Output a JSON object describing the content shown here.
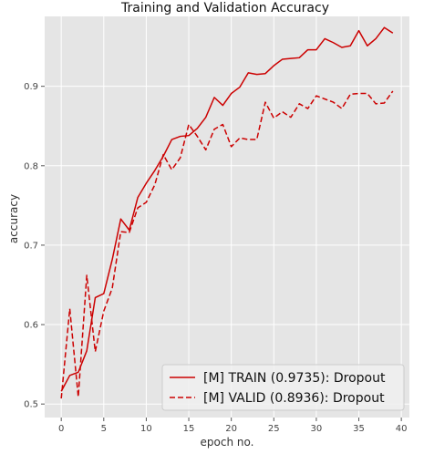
{
  "chart_data": {
    "type": "line",
    "title": "Training and Validation Accuracy",
    "xlabel": "epoch no.",
    "ylabel": "accuracy",
    "xlim": [
      -1.95,
      40.95
    ],
    "ylim": [
      0.483,
      0.988
    ],
    "xticks": [
      0,
      5,
      10,
      15,
      20,
      25,
      30,
      35,
      40
    ],
    "xtick_labels": [
      "0",
      "5",
      "10",
      "15",
      "20",
      "25",
      "30",
      "35",
      "40"
    ],
    "yticks": [
      0.5,
      0.6,
      0.7,
      0.8,
      0.9
    ],
    "ytick_labels": [
      "0.5",
      "0.6",
      "0.7",
      "0.8",
      "0.9"
    ],
    "grid": true,
    "style": "ggplot",
    "background_color": "#E5E5E5",
    "grid_color": "#FFFFFF",
    "legend_position": "lower-right",
    "x": [
      0,
      1,
      2,
      3,
      4,
      5,
      6,
      7,
      8,
      9,
      10,
      11,
      12,
      13,
      14,
      15,
      16,
      17,
      18,
      19,
      20,
      21,
      22,
      23,
      24,
      25,
      26,
      27,
      28,
      29,
      30,
      31,
      32,
      33,
      34,
      35,
      36,
      37,
      38,
      39
    ],
    "series": [
      {
        "name": "[M] TRAIN (0.9735): Dropout",
        "color": "#CC0000",
        "dash": "solid",
        "values": [
          0.516,
          0.536,
          0.54,
          0.567,
          0.634,
          0.639,
          0.682,
          0.733,
          0.719,
          0.76,
          0.778,
          0.794,
          0.812,
          0.833,
          0.837,
          0.838,
          0.847,
          0.861,
          0.886,
          0.876,
          0.891,
          0.899,
          0.917,
          0.915,
          0.916,
          0.926,
          0.934,
          0.935,
          0.936,
          0.946,
          0.946,
          0.96,
          0.955,
          0.949,
          0.951,
          0.97,
          0.951,
          0.96,
          0.974,
          0.967
        ]
      },
      {
        "name": "[M] VALID (0.8936): Dropout",
        "color": "#CC0000",
        "dash": "dashed",
        "values": [
          0.507,
          0.62,
          0.509,
          0.662,
          0.566,
          0.617,
          0.646,
          0.717,
          0.716,
          0.747,
          0.754,
          0.776,
          0.814,
          0.795,
          0.81,
          0.852,
          0.837,
          0.82,
          0.846,
          0.852,
          0.824,
          0.835,
          0.833,
          0.833,
          0.88,
          0.86,
          0.868,
          0.861,
          0.878,
          0.872,
          0.888,
          0.884,
          0.88,
          0.872,
          0.89,
          0.891,
          0.891,
          0.878,
          0.879,
          0.894
        ]
      }
    ]
  }
}
